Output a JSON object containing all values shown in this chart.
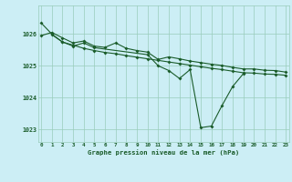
{
  "title": "Graphe pression niveau de la mer (hPa)",
  "background_color": "#cceef5",
  "grid_color": "#99ccbb",
  "line_color": "#1a5c2a",
  "x_labels": [
    "0",
    "1",
    "2",
    "3",
    "4",
    "5",
    "6",
    "7",
    "8",
    "9",
    "10",
    "11",
    "12",
    "13",
    "14",
    "15",
    "16",
    "17",
    "18",
    "19",
    "20",
    "21",
    "22",
    "23"
  ],
  "y_ticks": [
    1023,
    1024,
    1025,
    1026
  ],
  "ylim": [
    1022.6,
    1026.9
  ],
  "xlim": [
    -0.3,
    23.3
  ],
  "line1": [
    1026.35,
    1026.0,
    1025.75,
    1025.65,
    1025.55,
    1025.48,
    1025.42,
    1025.38,
    1025.32,
    1025.27,
    1025.22,
    1025.17,
    1025.12,
    1025.07,
    1025.02,
    1024.97,
    1024.92,
    1024.88,
    1024.83,
    1024.78,
    1024.77,
    1024.74,
    1024.73,
    1024.7
  ],
  "line2": [
    1025.95,
    1026.05,
    1025.88,
    1025.72,
    1025.78,
    1025.62,
    1025.58,
    1025.72,
    1025.55,
    1025.48,
    1025.43,
    1025.2,
    1025.28,
    1025.22,
    1025.15,
    1025.1,
    1025.05,
    1025.01,
    1024.95,
    1024.9,
    1024.9,
    1024.86,
    1024.85,
    1024.8
  ],
  "line3_x": [
    1,
    2,
    3,
    4,
    5,
    10,
    11,
    12,
    13,
    14,
    15,
    16,
    17,
    18,
    19
  ],
  "line3_y": [
    1025.98,
    1025.75,
    1025.62,
    1025.72,
    1025.57,
    1025.35,
    1025.0,
    1024.85,
    1024.6,
    1024.88,
    1023.05,
    1023.1,
    1023.75,
    1024.35,
    1024.75
  ]
}
